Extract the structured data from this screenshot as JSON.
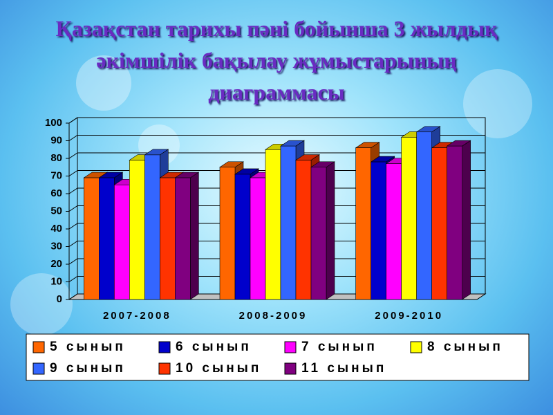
{
  "chart_data": {
    "type": "bar3d",
    "title": "Қазақстан тарихы пәні бойынша 3 жылдық әкімшілік бақылау жұмыстарының диаграммасы",
    "categories": [
      "2007-2008",
      "2008-2009",
      "2009-2010"
    ],
    "series": [
      {
        "name": "5 сынып",
        "color": "#ff6600",
        "values": [
          69,
          75,
          86
        ]
      },
      {
        "name": "6 сынып",
        "color": "#0000cc",
        "values": [
          69,
          71,
          78
        ]
      },
      {
        "name": "7 сынып",
        "color": "#ff00ff",
        "values": [
          65,
          69,
          77
        ]
      },
      {
        "name": "8 сынып",
        "color": "#ffff00",
        "values": [
          79,
          85,
          92
        ]
      },
      {
        "name": "9 сынып",
        "color": "#3366ff",
        "values": [
          82,
          87,
          95
        ]
      },
      {
        "name": "10 сынып",
        "color": "#ff3300",
        "values": [
          69,
          79,
          86
        ]
      },
      {
        "name": "11 сынып",
        "color": "#800080",
        "values": [
          69,
          75,
          87
        ]
      }
    ],
    "ylim": [
      0,
      100
    ],
    "yticks": [
      0,
      10,
      20,
      30,
      40,
      50,
      60,
      70,
      80,
      90,
      100
    ],
    "grid": true
  }
}
